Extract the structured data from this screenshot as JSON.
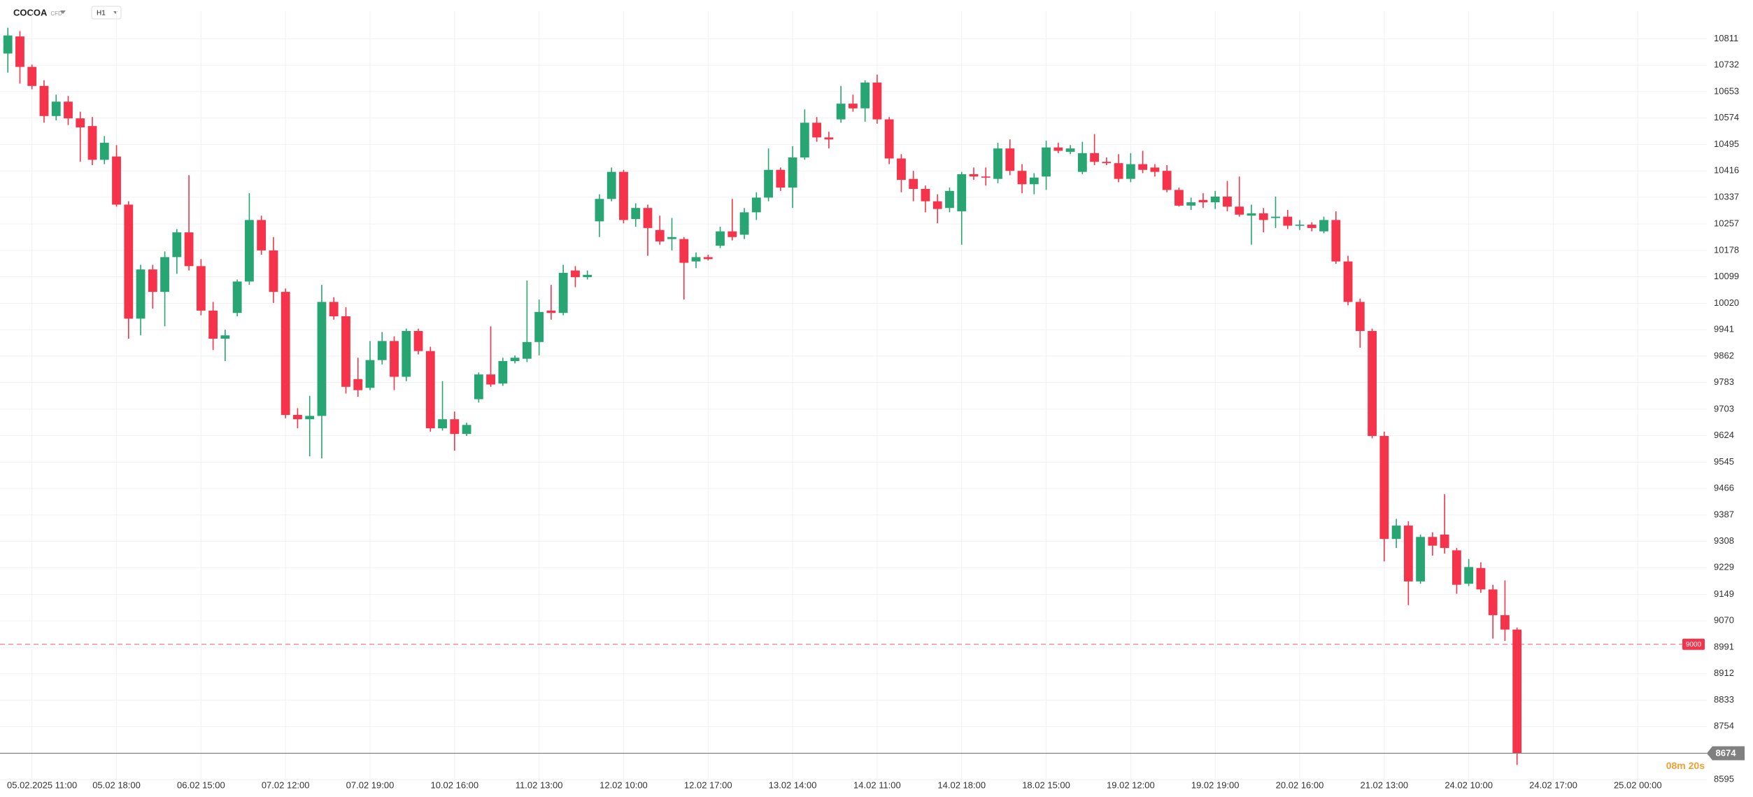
{
  "chart_data": {
    "type": "candlestick",
    "title": "COCOA",
    "instrument_type": "CFD",
    "timeframe": "H1",
    "up_color": "#27a673",
    "down_color": "#f5334a",
    "categories": [
      null,
      null,
      "05.02.2025 11:00",
      null,
      null,
      null,
      null,
      null,
      null,
      "05.02 18:00",
      null,
      null,
      null,
      null,
      null,
      null,
      "06.02 15:00",
      null,
      null,
      null,
      null,
      null,
      null,
      "07.02 12:00",
      null,
      null,
      null,
      null,
      null,
      null,
      "07.02 19:00",
      null,
      null,
      null,
      null,
      null,
      null,
      "10.02 16:00",
      null,
      null,
      null,
      null,
      null,
      null,
      "11.02 13:00",
      null,
      null,
      null,
      null,
      null,
      null,
      "12.02 10:00",
      null,
      null,
      null,
      null,
      null,
      null,
      "12.02 17:00",
      null,
      null,
      null,
      null,
      null,
      null,
      "13.02 14:00",
      null,
      null,
      null,
      null,
      null,
      null,
      "14.02 11:00",
      null,
      null,
      null,
      null,
      null,
      null,
      "14.02 18:00",
      null,
      null,
      null,
      null,
      null,
      null,
      "18.02 15:00",
      null,
      null,
      null,
      null,
      null,
      null,
      "19.02 12:00",
      null,
      null,
      null,
      null,
      null,
      null,
      "19.02 19:00",
      null,
      null,
      null,
      null,
      null,
      null,
      "20.02 16:00",
      null,
      null,
      null,
      null,
      null,
      null,
      "21.02 13:00",
      null,
      null,
      null,
      null,
      null,
      null,
      "24.02 10:00",
      null,
      null,
      null,
      null,
      null,
      null,
      "24.02 17:00",
      null,
      null,
      null,
      null,
      null,
      null,
      "25.02 00:00"
    ],
    "open": [
      10767,
      10818,
      10727,
      10670,
      10580,
      10623,
      10573,
      10550,
      10449,
      10459,
      10315,
      9974,
      10121,
      10054,
      10158,
      10232,
      10131,
      9998,
      9914,
      9991,
      10085,
      10269,
      10178,
      10054,
      9686,
      9673,
      9683,
      10024,
      9981,
      9793,
      9767,
      9850,
      9907,
      9800,
      9937,
      9877,
      9646,
      9673,
      9629,
      9733,
      9807,
      9780,
      9847,
      9854,
      9904,
      9998,
      9991,
      10118,
      10098,
      10265,
      10332,
      10413,
      10272,
      10305,
      10239,
      10212,
      10212,
      10145,
      10158,
      10192,
      10235,
      10225,
      10292,
      10336,
      10419,
      10366,
      10456,
      10560,
      10516,
      10570,
      10617,
      10603,
      10680,
      10570,
      10453,
      10392,
      10362,
      10325,
      10305,
      10295,
      10406,
      10399,
      10392,
      10483,
      10416,
      10376,
      10399,
      10486,
      10473,
      10413,
      10469,
      10443,
      10439,
      10392,
      10436,
      10426,
      10416,
      10359,
      10312,
      10329,
      10322,
      10339,
      10309,
      10282,
      10289,
      10275,
      10279,
      10252,
      10255,
      10235,
      10269,
      10145,
      10024,
      9937,
      9623,
      9315,
      9355,
      9188,
      9321,
      9328,
      9281,
      9181,
      9228,
      9164,
      9087,
      9044,
      null,
      null,
      null,
      null,
      null,
      null,
      null,
      null,
      null,
      null
    ],
    "high": [
      10844,
      10834,
      10734,
      10687,
      10644,
      10640,
      10593,
      10577,
      10520,
      10493,
      10325,
      10135,
      10135,
      10175,
      10242,
      10403,
      10152,
      10024,
      9941,
      10091,
      10349,
      10282,
      10218,
      10064,
      9706,
      9743,
      10075,
      10038,
      10008,
      9857,
      9907,
      9934,
      9921,
      9944,
      9944,
      9890,
      9787,
      9696,
      9663,
      9813,
      9951,
      9857,
      9864,
      10088,
      10031,
      10075,
      10135,
      10131,
      10118,
      10346,
      10426,
      10419,
      10319,
      10315,
      10282,
      10275,
      10218,
      10172,
      10165,
      10249,
      10332,
      10305,
      10352,
      10483,
      10426,
      10490,
      10600,
      10577,
      10533,
      10670,
      10644,
      10687,
      10704,
      10577,
      10466,
      10416,
      10372,
      10346,
      10366,
      10413,
      10426,
      10426,
      10500,
      10510,
      10436,
      10409,
      10506,
      10500,
      10493,
      10503,
      10526,
      10456,
      10466,
      10469,
      10476,
      10436,
      10433,
      10366,
      10336,
      10349,
      10356,
      10386,
      10399,
      10315,
      10305,
      10339,
      10299,
      10269,
      10262,
      10279,
      10295,
      10162,
      10034,
      9944,
      9636,
      9375,
      9368,
      9328,
      9335,
      9449,
      9288,
      9255,
      9245,
      9178,
      9191,
      9050,
      null,
      null,
      null,
      null,
      null,
      null,
      null,
      null,
      null,
      null
    ],
    "low": [
      10710,
      10677,
      10660,
      10560,
      10567,
      10553,
      10443,
      10433,
      10436,
      10309,
      9914,
      9924,
      10004,
      9951,
      10108,
      10118,
      9984,
      9880,
      9847,
      9981,
      10075,
      10165,
      10021,
      9676,
      9646,
      9562,
      9556,
      9971,
      9750,
      9740,
      9760,
      9837,
      9760,
      9787,
      9867,
      9636,
      9639,
      9579,
      9623,
      9723,
      9770,
      9773,
      9840,
      9844,
      9864,
      9971,
      9984,
      10068,
      10091,
      10218,
      10325,
      10259,
      10249,
      10162,
      10195,
      10178,
      10031,
      10125,
      10148,
      10185,
      10208,
      10212,
      10269,
      10325,
      10356,
      10305,
      10449,
      10503,
      10483,
      10560,
      10593,
      10563,
      10557,
      10436,
      10352,
      10325,
      10292,
      10259,
      10292,
      10195,
      10389,
      10372,
      10379,
      10403,
      10349,
      10346,
      10359,
      10469,
      10466,
      10406,
      10433,
      10433,
      10382,
      10382,
      10409,
      10399,
      10352,
      10309,
      10299,
      10305,
      10302,
      10295,
      10279,
      10195,
      10232,
      10245,
      10242,
      10239,
      10235,
      10229,
      10138,
      10014,
      9887,
      9616,
      9248,
      9288,
      9117,
      9181,
      9265,
      9271,
      9151,
      9174,
      9154,
      9017,
      9010,
      8639,
      null,
      null,
      null,
      null,
      null,
      null,
      null,
      null,
      null,
      null
    ],
    "close": [
      10821,
      10727,
      10670,
      10580,
      10623,
      10573,
      10546,
      10449,
      10500,
      10315,
      9974,
      10121,
      10054,
      10158,
      10232,
      10131,
      9998,
      9914,
      9924,
      10085,
      10269,
      10178,
      10054,
      9686,
      9673,
      9683,
      10024,
      9981,
      9770,
      9760,
      9850,
      9907,
      9800,
      9937,
      9877,
      9646,
      9673,
      9629,
      9656,
      9807,
      9777,
      9847,
      9857,
      9904,
      9994,
      9991,
      10111,
      10098,
      10105,
      10332,
      10413,
      10269,
      10305,
      10245,
      10205,
      10218,
      10141,
      10158,
      10152,
      10235,
      10218,
      10292,
      10336,
      10419,
      10366,
      10456,
      10560,
      10516,
      10510,
      10617,
      10603,
      10680,
      10570,
      10453,
      10389,
      10362,
      10325,
      10302,
      10356,
      10406,
      10399,
      10396,
      10483,
      10416,
      10376,
      10396,
      10486,
      10476,
      10483,
      10469,
      10443,
      10439,
      10392,
      10436,
      10419,
      10413,
      10359,
      10312,
      10322,
      10322,
      10339,
      10309,
      10285,
      10289,
      10269,
      10279,
      10252,
      10255,
      10245,
      10269,
      10145,
      10024,
      9937,
      9623,
      9315,
      9355,
      9188,
      9321,
      9295,
      9288,
      9178,
      9231,
      9164,
      9087,
      9044,
      8674,
      null,
      null,
      null,
      null,
      null,
      null,
      null,
      null,
      null,
      null
    ],
    "ylim": [
      8585,
      10881
    ],
    "yticks": [
      10811,
      10732,
      10653,
      10574,
      10495,
      10416,
      10337,
      10257,
      10178,
      10099,
      10020,
      9941,
      9862,
      9783,
      9703,
      9624,
      9545,
      9466,
      9387,
      9308,
      9229,
      9149,
      9070,
      8991,
      8912,
      8833,
      8754,
      8595
    ],
    "grid": true,
    "price_line": {
      "value": 9000,
      "color": "#f5334a"
    },
    "current_price": {
      "value": 8674,
      "color": "#808080"
    },
    "countdown": "08m 20s"
  }
}
